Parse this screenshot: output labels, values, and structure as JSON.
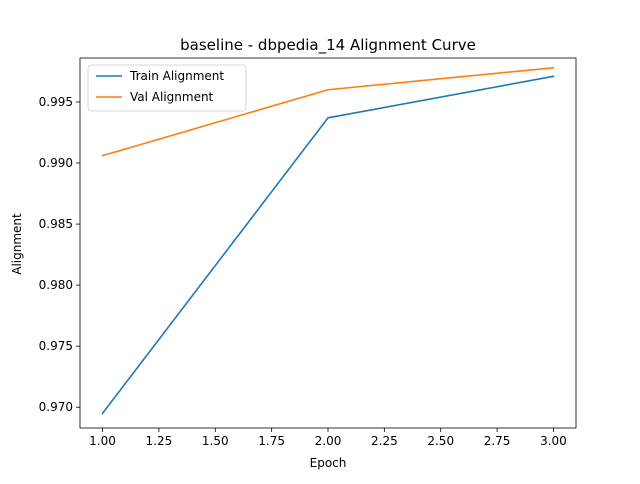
{
  "chart_data": {
    "type": "line",
    "title": "baseline - dbpedia_14 Alignment Curve",
    "xlabel": "Epoch",
    "ylabel": "Alignment",
    "x": [
      1.0,
      2.0,
      3.0
    ],
    "series": [
      {
        "name": "Train Alignment",
        "values": [
          0.9695,
          0.9937,
          0.9971
        ],
        "color": "#1f77b4"
      },
      {
        "name": "Val Alignment",
        "values": [
          0.9906,
          0.996,
          0.9978
        ],
        "color": "#ff7f0e"
      }
    ],
    "xlim": [
      0.9,
      3.1
    ],
    "ylim": [
      0.9683,
      0.9986
    ],
    "xticks": [
      1.0,
      1.25,
      1.5,
      1.75,
      2.0,
      2.25,
      2.5,
      2.75,
      3.0
    ],
    "xtick_labels": [
      "1.00",
      "1.25",
      "1.50",
      "1.75",
      "2.00",
      "2.25",
      "2.50",
      "2.75",
      "3.00"
    ],
    "yticks": [
      0.97,
      0.975,
      0.98,
      0.985,
      0.99,
      0.995
    ],
    "ytick_labels": [
      "0.970",
      "0.975",
      "0.980",
      "0.985",
      "0.990",
      "0.995"
    ],
    "grid": false,
    "legend_position": "upper-left"
  }
}
